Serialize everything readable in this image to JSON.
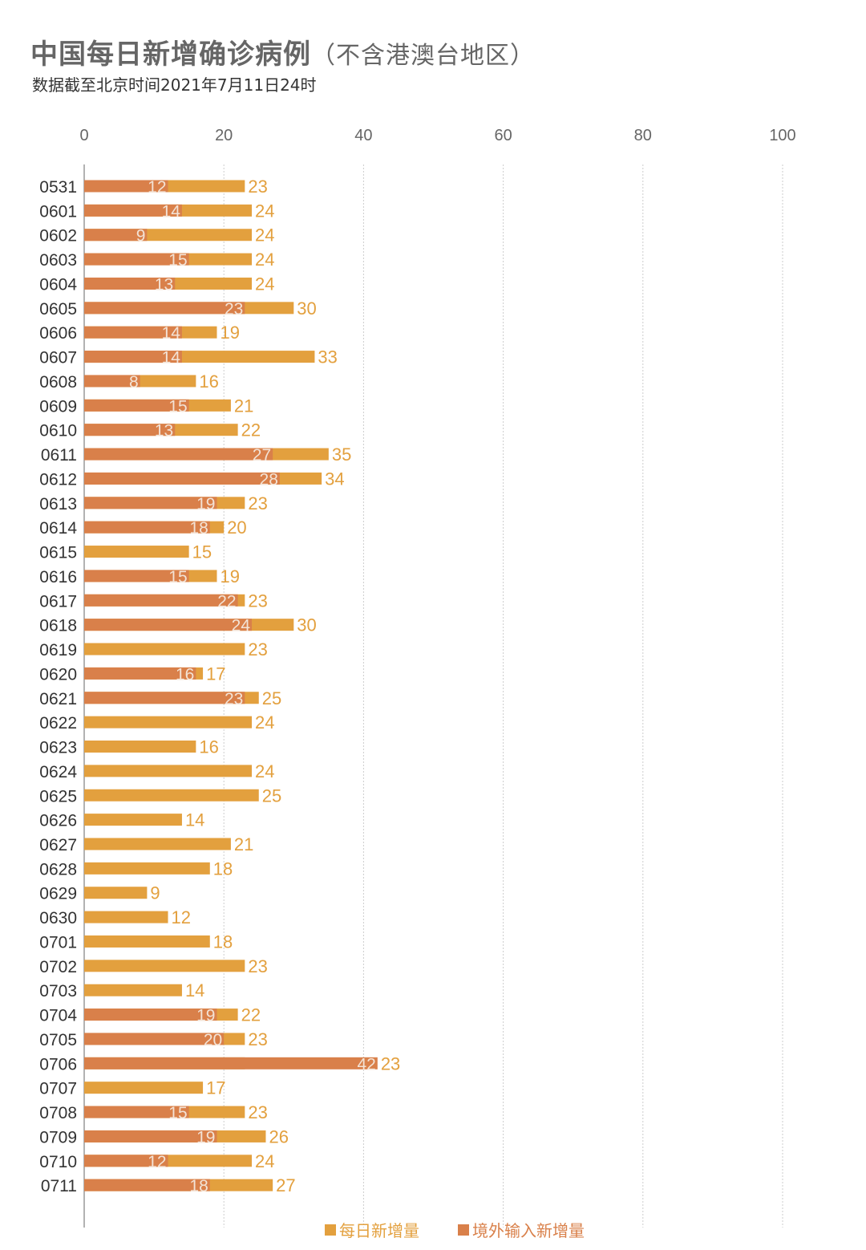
{
  "chart_data": {
    "type": "bar",
    "orientation": "horizontal",
    "title": "中国每日新增确诊病例",
    "title_note": "（不含港澳台地区）",
    "subtitle": "数据截至北京时间2021年7月11日24时",
    "xlim": [
      0,
      100
    ],
    "x_ticks": [
      0,
      20,
      40,
      60,
      80,
      100
    ],
    "grid": true,
    "legend_position": "bottom",
    "colors": {
      "daily": "#e3a03e",
      "imported": "#d9804a"
    },
    "categories": [
      "0531",
      "0601",
      "0602",
      "0603",
      "0604",
      "0605",
      "0606",
      "0607",
      "0608",
      "0609",
      "0610",
      "0611",
      "0612",
      "0613",
      "0614",
      "0615",
      "0616",
      "0617",
      "0618",
      "0619",
      "0620",
      "0621",
      "0622",
      "0623",
      "0624",
      "0625",
      "0626",
      "0627",
      "0628",
      "0629",
      "0630",
      "0701",
      "0702",
      "0703",
      "0704",
      "0705",
      "0706",
      "0707",
      "0708",
      "0709",
      "0710",
      "0711"
    ],
    "series": [
      {
        "name": "每日新增量",
        "values": [
          23,
          24,
          24,
          24,
          24,
          30,
          19,
          33,
          16,
          21,
          22,
          35,
          34,
          23,
          20,
          15,
          19,
          23,
          30,
          23,
          17,
          25,
          24,
          16,
          24,
          25,
          14,
          21,
          18,
          9,
          12,
          18,
          23,
          14,
          22,
          23,
          23,
          17,
          23,
          26,
          24,
          27
        ]
      },
      {
        "name": "境外输入新增量",
        "values": [
          12,
          14,
          9,
          15,
          13,
          23,
          14,
          14,
          8,
          15,
          13,
          27,
          28,
          19,
          18,
          null,
          15,
          22,
          24,
          null,
          16,
          23,
          null,
          null,
          null,
          null,
          null,
          null,
          null,
          null,
          null,
          null,
          null,
          null,
          19,
          20,
          42,
          null,
          15,
          19,
          12,
          18
        ]
      }
    ]
  }
}
